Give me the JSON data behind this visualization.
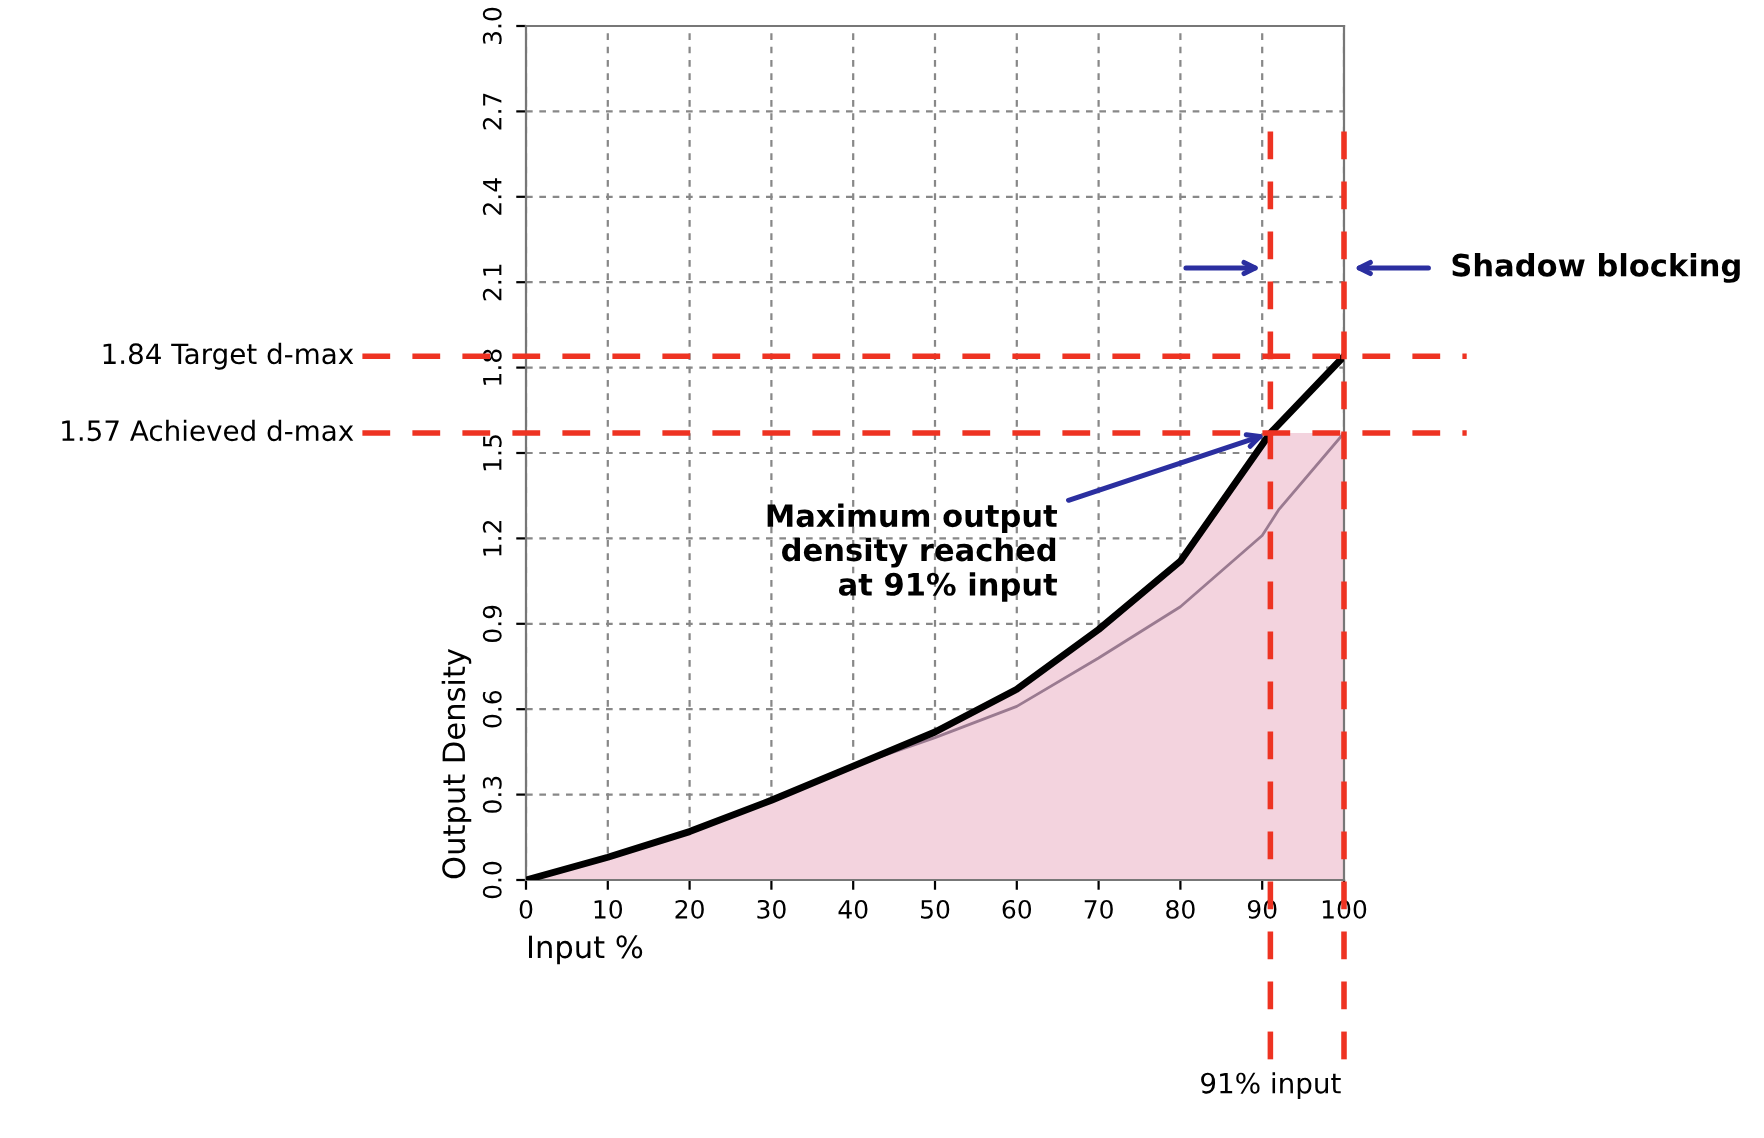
{
  "chart_data": {
    "type": "line",
    "xlabel": "Input %",
    "ylabel": "Output Density",
    "xlim": [
      0,
      100
    ],
    "ylim": [
      0,
      3.0
    ],
    "xticks": [
      0,
      10,
      20,
      30,
      40,
      50,
      60,
      70,
      80,
      90,
      100
    ],
    "yticks": [
      {
        "value": 0,
        "label": "0.0"
      },
      0.3,
      0.6,
      0.9,
      1.2,
      1.5,
      1.8,
      2.1,
      2.4,
      2.7,
      {
        "value": 3,
        "label": "3.0"
      }
    ],
    "grid": true,
    "line_style": "solid",
    "marker": "none",
    "series": [
      {
        "type": "area",
        "color": "#f3d3de",
        "x": [
          0,
          10,
          20,
          30,
          40,
          50,
          60,
          70,
          80,
          91,
          100
        ],
        "values": [
          0,
          0.08,
          0.17,
          0.28,
          0.4,
          0.52,
          0.67,
          0.88,
          1.12,
          1.57,
          1.57
        ]
      },
      {
        "color": "#9a7a90",
        "x": [
          40,
          50,
          60,
          70,
          80,
          90,
          92,
          100
        ],
        "values": [
          0.4,
          0.5,
          0.61,
          0.78,
          0.96,
          1.21,
          1.3,
          1.57
        ]
      },
      {
        "color": "#000000",
        "x": [
          0,
          10,
          20,
          30,
          40,
          50,
          60,
          70,
          80,
          91,
          100
        ],
        "values": [
          0,
          0.08,
          0.17,
          0.28,
          0.4,
          0.52,
          0.67,
          0.88,
          1.12,
          1.57,
          1.84
        ]
      }
    ],
    "ref_lines": [
      {
        "axis": "y",
        "value": 1.84,
        "label": "1.84 Target d-max",
        "color": "#ee3322",
        "line_style": "dashed"
      },
      {
        "axis": "y",
        "value": 1.57,
        "label": "1.57 Achieved d-max",
        "color": "#ee3322",
        "line_style": "dashed"
      },
      {
        "axis": "x",
        "value": 91,
        "label": "91% input",
        "color": "#ee3322",
        "line_style": "dashed"
      },
      {
        "axis": "x",
        "value": 100,
        "label": null,
        "color": "#ee3322",
        "line_style": "dashed"
      }
    ],
    "annotations": [
      {
        "text": "Maximum output\ndensity reached\nat 91% input",
        "x": 91,
        "y": 1.57
      },
      "Shadow blocking"
    ]
  }
}
